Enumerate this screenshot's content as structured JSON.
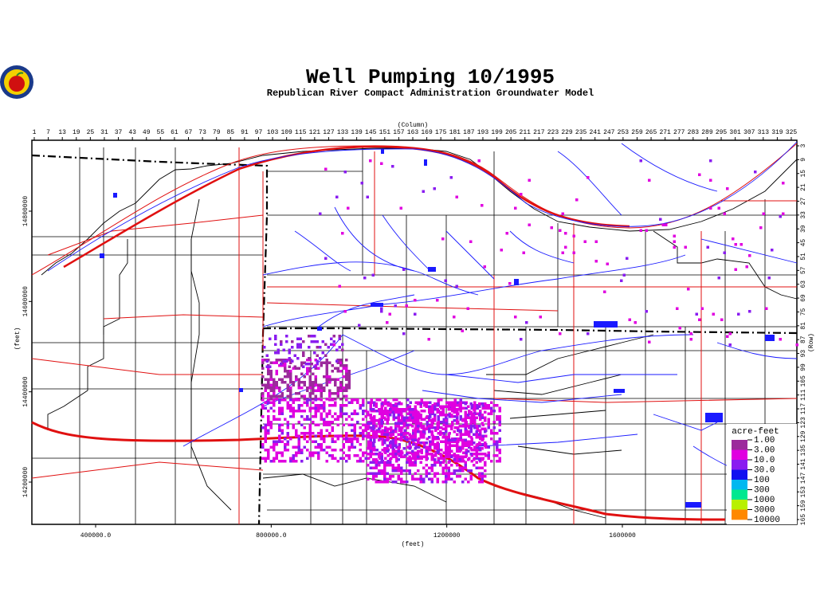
{
  "header": {
    "title": "Well Pumping 10/1995",
    "subtitle": "Republican River Compact Administration Groundwater Model"
  },
  "map": {
    "column_label": "(Column)",
    "row_label": "(Row)",
    "x_label": "(feet)",
    "y_label": "(feet)",
    "column_ticks": [
      1,
      7,
      13,
      19,
      25,
      31,
      37,
      43,
      49,
      55,
      61,
      67,
      73,
      79,
      85,
      91,
      97,
      103,
      109,
      115,
      121,
      127,
      133,
      139,
      145,
      151,
      157,
      163,
      169,
      175,
      181,
      187,
      193,
      199,
      205,
      211,
      217,
      223,
      229,
      235,
      241,
      247,
      253,
      259,
      265,
      271,
      277,
      283,
      289,
      295,
      301,
      307,
      313,
      319,
      325
    ],
    "row_ticks": [
      3,
      9,
      15,
      21,
      27,
      33,
      39,
      45,
      51,
      57,
      63,
      69,
      75,
      81,
      87,
      93,
      99,
      105,
      111,
      117,
      123,
      129,
      135,
      141,
      147,
      153,
      159,
      165
    ],
    "x_ticks": [
      {
        "value": 400000,
        "label": "400000.0"
      },
      {
        "value": 800000,
        "label": "800000.0"
      },
      1200000,
      1600000
    ],
    "y_ticks": [
      14800000,
      14600000,
      14400000,
      14200000
    ]
  },
  "legend": {
    "title": "acre-feet",
    "labels": [
      "1.00",
      "3.00",
      "10.0",
      "30.0",
      "100",
      "300",
      "1000",
      "3000",
      "10000"
    ],
    "colors": [
      "#9c2a9c",
      "#e000e0",
      "#8a1cf0",
      "#1010f0",
      "#00b8f0",
      "#00e890",
      "#b8f000",
      "#ff8800"
    ]
  }
}
